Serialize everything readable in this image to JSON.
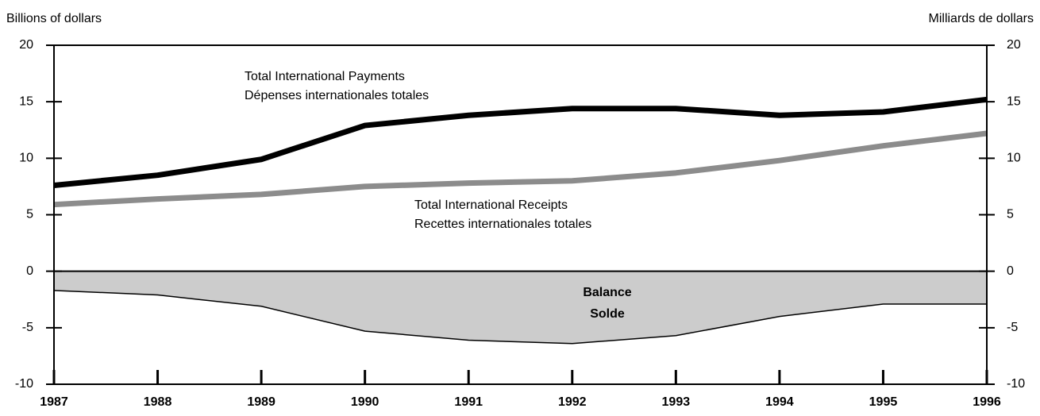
{
  "chart_data": {
    "type": "line",
    "y_label": "Billions of dollars",
    "y2_label": "Milliards de dollars",
    "x": [
      1987,
      1988,
      1989,
      1990,
      1991,
      1992,
      1993,
      1994,
      1995,
      1996
    ],
    "xlim": [
      1987,
      1996
    ],
    "xticks": [
      1987,
      1988,
      1989,
      1990,
      1991,
      1992,
      1993,
      1994,
      1995,
      1996
    ],
    "ylim": [
      -10,
      20
    ],
    "yticks": [
      -10,
      -5,
      0,
      5,
      10,
      15,
      20
    ],
    "y2lim": [
      -10,
      20
    ],
    "y2ticks": [
      -10,
      -5,
      0,
      5,
      10,
      15,
      20
    ],
    "series": [
      {
        "name": "Total International Payments",
        "type": "line",
        "color": "#000000",
        "values": [
          7.6,
          8.5,
          9.9,
          12.9,
          13.8,
          14.4,
          14.4,
          13.8,
          14.1,
          15.2
        ]
      },
      {
        "name": "Total International Receipts",
        "type": "line",
        "color": "#8c8c8c",
        "values": [
          5.9,
          6.4,
          6.8,
          7.5,
          7.8,
          8.0,
          8.7,
          9.8,
          11.1,
          12.2
        ]
      },
      {
        "name": "Balance",
        "type": "area",
        "color": "#cccccc",
        "values": [
          -1.7,
          -2.1,
          -3.1,
          -5.3,
          -6.1,
          -6.4,
          -5.7,
          -4.0,
          -2.9,
          -2.9
        ]
      }
    ],
    "annotations": [
      {
        "lines": [
          "Total International Payments",
          "Dépenses internationales totales"
        ]
      },
      {
        "lines": [
          "Total International Receipts",
          "Recettes internationales totales"
        ]
      },
      {
        "lines": [
          "Balance",
          "Solde"
        ]
      }
    ]
  }
}
